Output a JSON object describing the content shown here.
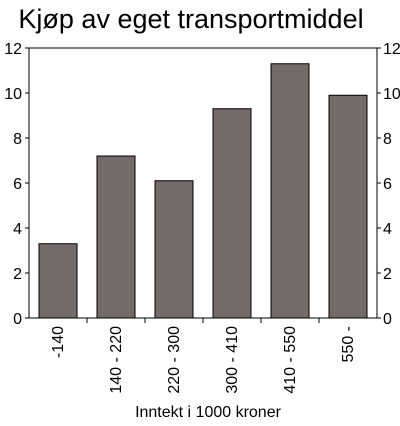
{
  "chart_data": {
    "type": "bar",
    "title": "Kjøp av eget transportmiddel",
    "xlabel": "Inntekt i 1000 kroner",
    "ylabel": "",
    "categories": [
      "-140",
      "140 - 220",
      "220 - 300",
      "300 - 410",
      "410 - 550",
      "550 -"
    ],
    "values": [
      3.3,
      7.2,
      6.1,
      9.3,
      11.3,
      9.9
    ],
    "ylim": [
      0,
      12
    ],
    "yticks": [
      0,
      2,
      4,
      6,
      8,
      10,
      12
    ],
    "grid": false,
    "legend": "none",
    "colors": {
      "bar": "#736a6a",
      "outline": "#000000"
    }
  }
}
